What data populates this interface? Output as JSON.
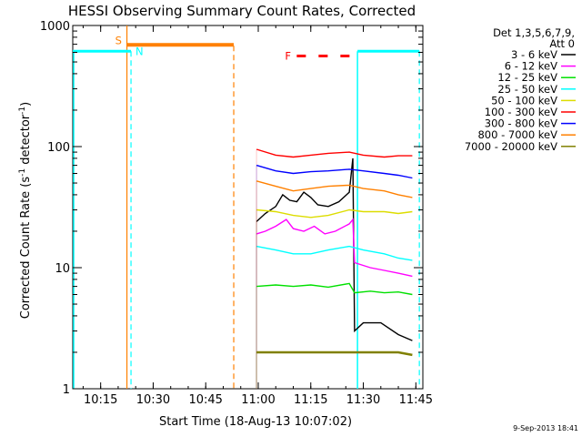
{
  "chart_data": {
    "type": "line",
    "title": "HESSI Observing Summary Count Rates, Corrected",
    "xlabel": "Start Time (18-Aug-13 10:07:02)",
    "ylabel_main": "Corrected Count Rate (s",
    "ylabel_sup1": "-1",
    "ylabel_mid": " detector",
    "ylabel_sup2": "-1",
    "ylabel_end": ")",
    "xlim": [
      "10:07:02",
      "11:47:00"
    ],
    "ylim": [
      1,
      1000
    ],
    "yscale": "log",
    "x_ticks": [
      "10:15",
      "10:30",
      "10:45",
      "11:00",
      "11:15",
      "11:30",
      "11:45"
    ],
    "y_ticks": [
      {
        "value": 1,
        "label": "1"
      },
      {
        "value": 10,
        "label": "10"
      },
      {
        "value": 100,
        "label": "100"
      },
      {
        "value": 1000,
        "label": "1000"
      }
    ],
    "legend_header": [
      "Det 1,3,5,6,7,9,",
      "Att 0"
    ],
    "legend_position": "right",
    "series": [
      {
        "name": "3 - 6 keV",
        "color": "#000000",
        "points": [
          [
            "10:59:30",
            24
          ],
          [
            "11:02:00",
            28
          ],
          [
            "11:05:00",
            32
          ],
          [
            "11:07:00",
            40
          ],
          [
            "11:09:00",
            36
          ],
          [
            "11:11:00",
            35
          ],
          [
            "11:13:00",
            42
          ],
          [
            "11:15:00",
            38
          ],
          [
            "11:17:00",
            33
          ],
          [
            "11:20:00",
            32
          ],
          [
            "11:23:00",
            35
          ],
          [
            "11:26:00",
            42
          ],
          [
            "11:27:00",
            80
          ],
          [
            "11:27:30",
            3.0
          ],
          [
            "11:30:00",
            3.5
          ],
          [
            "11:35:00",
            3.5
          ],
          [
            "11:40:00",
            2.8
          ],
          [
            "11:44:00",
            2.5
          ]
        ]
      },
      {
        "name": "6 - 12 keV",
        "color": "#ff00ff",
        "points": [
          [
            "10:59:30",
            19
          ],
          [
            "11:02:00",
            20
          ],
          [
            "11:05:00",
            22
          ],
          [
            "11:08:00",
            25
          ],
          [
            "11:10:00",
            21
          ],
          [
            "11:13:00",
            20
          ],
          [
            "11:16:00",
            22
          ],
          [
            "11:19:00",
            19
          ],
          [
            "11:22:00",
            20
          ],
          [
            "11:26:00",
            23
          ],
          [
            "11:27:00",
            25
          ],
          [
            "11:27:30",
            11
          ],
          [
            "11:32:00",
            10
          ],
          [
            "11:36:00",
            9.5
          ],
          [
            "11:40:00",
            9
          ],
          [
            "11:44:00",
            8.5
          ]
        ]
      },
      {
        "name": "12 - 25 keV",
        "color": "#00e000",
        "points": [
          [
            "10:59:30",
            7.0
          ],
          [
            "11:05:00",
            7.2
          ],
          [
            "11:10:00",
            7.0
          ],
          [
            "11:15:00",
            7.2
          ],
          [
            "11:20:00",
            6.9
          ],
          [
            "11:26:00",
            7.4
          ],
          [
            "11:27:30",
            6.2
          ],
          [
            "11:32:00",
            6.4
          ],
          [
            "11:36:00",
            6.2
          ],
          [
            "11:40:00",
            6.3
          ],
          [
            "11:44:00",
            6.0
          ]
        ]
      },
      {
        "name": "25 - 50 keV",
        "color": "#00ffff",
        "points": [
          [
            "10:59:30",
            15
          ],
          [
            "11:05:00",
            14
          ],
          [
            "11:10:00",
            13
          ],
          [
            "11:15:00",
            13
          ],
          [
            "11:20:00",
            14
          ],
          [
            "11:26:00",
            15
          ],
          [
            "11:30:00",
            14
          ],
          [
            "11:36:00",
            13
          ],
          [
            "11:40:00",
            12
          ],
          [
            "11:44:00",
            11.5
          ]
        ]
      },
      {
        "name": "50 - 100 keV",
        "color": "#dddd00",
        "points": [
          [
            "10:59:30",
            30
          ],
          [
            "11:05:00",
            29
          ],
          [
            "11:10:00",
            27
          ],
          [
            "11:15:00",
            26
          ],
          [
            "11:20:00",
            27
          ],
          [
            "11:26:00",
            30
          ],
          [
            "11:30:00",
            29
          ],
          [
            "11:36:00",
            29
          ],
          [
            "11:40:00",
            28
          ],
          [
            "11:44:00",
            29
          ]
        ]
      },
      {
        "name": "100 - 300 keV",
        "color": "#ff0000",
        "points": [
          [
            "10:59:30",
            95
          ],
          [
            "11:05:00",
            85
          ],
          [
            "11:10:00",
            82
          ],
          [
            "11:15:00",
            85
          ],
          [
            "11:20:00",
            88
          ],
          [
            "11:26:00",
            90
          ],
          [
            "11:30:00",
            85
          ],
          [
            "11:36:00",
            82
          ],
          [
            "11:40:00",
            84
          ],
          [
            "11:44:00",
            84
          ]
        ]
      },
      {
        "name": "300 - 800 keV",
        "color": "#0000ff",
        "points": [
          [
            "10:59:30",
            70
          ],
          [
            "11:05:00",
            63
          ],
          [
            "11:10:00",
            60
          ],
          [
            "11:15:00",
            62
          ],
          [
            "11:20:00",
            63
          ],
          [
            "11:26:00",
            65
          ],
          [
            "11:30:00",
            63
          ],
          [
            "11:36:00",
            60
          ],
          [
            "11:40:00",
            58
          ],
          [
            "11:44:00",
            55
          ]
        ]
      },
      {
        "name": "800 - 7000 keV",
        "color": "#ff8000",
        "points": [
          [
            "10:59:30",
            52
          ],
          [
            "11:05:00",
            47
          ],
          [
            "11:10:00",
            43
          ],
          [
            "11:15:00",
            45
          ],
          [
            "11:20:00",
            47
          ],
          [
            "11:26:00",
            48
          ],
          [
            "11:30:00",
            45
          ],
          [
            "11:36:00",
            43
          ],
          [
            "11:40:00",
            40
          ],
          [
            "11:44:00",
            38
          ]
        ]
      },
      {
        "name": "7000 - 20000 keV",
        "color": "#808000",
        "points": [
          [
            "10:59:30",
            2.0
          ],
          [
            "11:05:00",
            2.0
          ],
          [
            "11:10:00",
            2.0
          ],
          [
            "11:15:00",
            2.0
          ],
          [
            "11:20:00",
            2.0
          ],
          [
            "11:26:00",
            2.0
          ],
          [
            "11:30:00",
            2.0
          ],
          [
            "11:36:00",
            2.0
          ],
          [
            "11:40:00",
            2.0
          ],
          [
            "11:44:00",
            1.9
          ]
        ]
      }
    ],
    "annotations": {
      "saa": {
        "label": "S",
        "color": "#ff8000",
        "start": "10:22:30",
        "end": "10:53:00"
      },
      "night": {
        "label": "N",
        "color": "#00ffff",
        "segments": [
          [
            "10:07:02",
            "10:23:40"
          ],
          [
            "11:28:20",
            "11:46:00"
          ]
        ]
      },
      "flare": {
        "label": "F",
        "color": "#ff0000",
        "start": "11:11:00",
        "end": "11:28:00"
      },
      "marker_level": 680,
      "flare_level": 560
    },
    "timestamp": "9-Sep-2013 18:41"
  }
}
